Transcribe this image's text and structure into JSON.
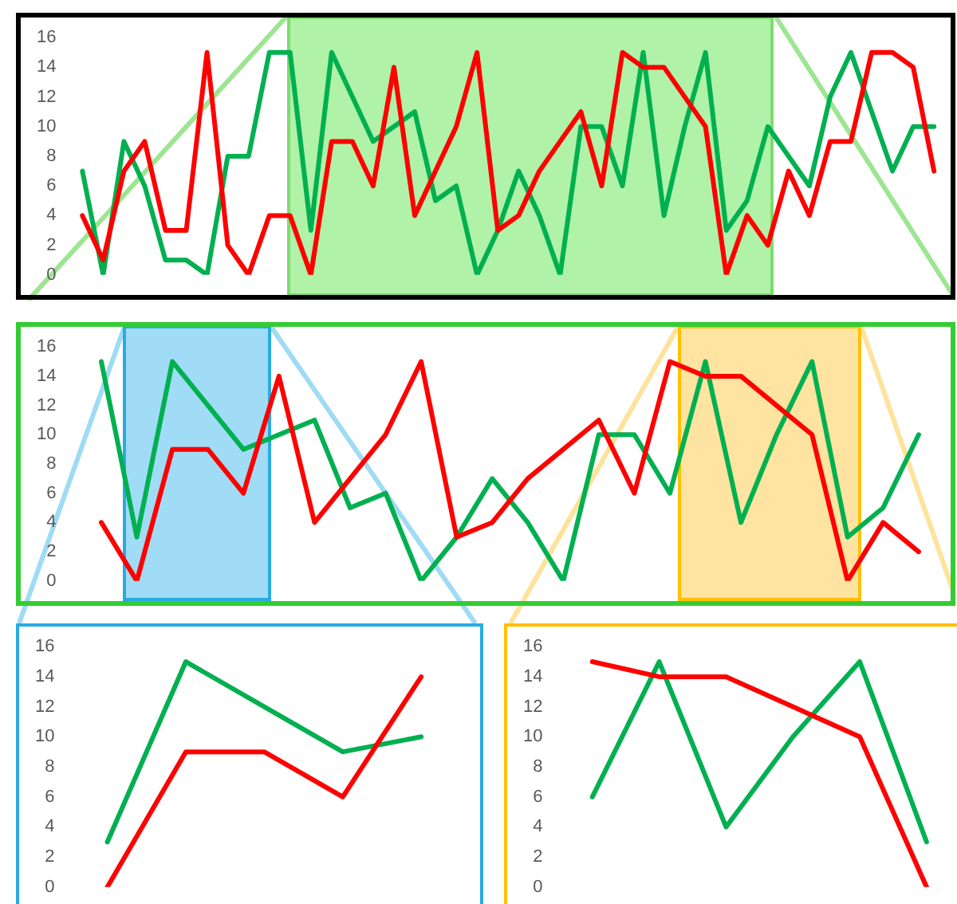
{
  "chart_data": [
    {
      "type": "line",
      "categories": [
        null,
        null,
        null,
        null,
        null,
        null,
        null,
        null,
        null,
        null,
        null,
        null,
        null,
        null,
        null,
        null,
        null,
        null,
        null,
        null,
        null,
        null,
        null,
        null,
        null,
        null,
        null,
        null,
        null,
        null,
        null,
        null,
        null,
        null,
        null,
        null,
        null,
        null,
        null,
        null,
        null,
        null
      ],
      "series": [
        {
          "color": "#ff0000",
          "values": [
            4,
            1,
            7,
            9,
            3,
            3,
            15,
            2,
            0,
            4,
            4,
            0,
            9,
            9,
            6,
            14,
            4,
            7,
            10,
            15,
            3,
            4,
            7,
            9,
            11,
            6,
            15,
            14,
            14,
            12,
            10,
            0,
            4,
            2,
            7,
            4,
            9,
            9,
            15,
            15,
            14,
            7
          ]
        },
        {
          "color": "#00b050",
          "values": [
            7,
            0,
            9,
            6,
            1,
            1,
            0,
            8,
            8,
            15,
            15,
            3,
            15,
            12,
            9,
            10,
            11,
            5,
            6,
            0,
            3,
            7,
            4,
            0,
            10,
            10,
            6,
            15,
            4,
            10,
            15,
            3,
            5,
            10,
            8,
            6,
            12,
            15,
            11,
            7,
            10,
            10
          ]
        }
      ],
      "ylim": [
        0,
        16
      ],
      "yticks": [
        0,
        2,
        4,
        6,
        8,
        10,
        12,
        14,
        16
      ],
      "tick_labels": "y",
      "grid": false,
      "legend": false
    },
    {
      "type": "line",
      "categories": [
        null,
        null,
        null,
        null,
        null,
        null,
        null,
        null,
        null,
        null,
        null,
        null,
        null,
        null,
        null,
        null,
        null,
        null,
        null,
        null,
        null,
        null,
        null,
        null
      ],
      "series": [
        {
          "color": "#ff0000",
          "values": [
            4,
            0,
            9,
            9,
            6,
            14,
            4,
            7,
            10,
            15,
            3,
            4,
            7,
            9,
            11,
            6,
            15,
            14,
            14,
            12,
            10,
            0,
            4,
            2
          ]
        },
        {
          "color": "#00b050",
          "values": [
            15,
            3,
            15,
            12,
            9,
            10,
            11,
            5,
            6,
            0,
            3,
            7,
            4,
            0,
            10,
            10,
            6,
            15,
            4,
            10,
            15,
            3,
            5,
            10
          ]
        }
      ],
      "ylim": [
        0,
        16
      ],
      "yticks": [
        0,
        2,
        4,
        6,
        8,
        10,
        12,
        14,
        16
      ],
      "tick_labels": "y",
      "grid": false,
      "legend": false
    },
    {
      "type": "line",
      "categories": [
        null,
        null,
        null,
        null,
        null
      ],
      "series": [
        {
          "color": "#ff0000",
          "values": [
            0,
            9,
            9,
            6,
            14
          ]
        },
        {
          "color": "#00b050",
          "values": [
            3,
            15,
            12,
            9,
            10
          ]
        }
      ],
      "ylim": [
        0,
        16
      ],
      "yticks": [
        0,
        2,
        4,
        6,
        8,
        10,
        12,
        14,
        16
      ],
      "tick_labels": "y",
      "grid": false,
      "legend": false
    },
    {
      "type": "line",
      "categories": [
        null,
        null,
        null,
        null,
        null,
        null
      ],
      "series": [
        {
          "color": "#ff0000",
          "values": [
            15,
            14,
            14,
            12,
            10,
            0
          ]
        },
        {
          "color": "#00b050",
          "values": [
            6,
            15,
            4,
            10,
            15,
            3
          ]
        }
      ],
      "ylim": [
        0,
        16
      ],
      "yticks": [
        0,
        2,
        4,
        6,
        8,
        10,
        12,
        14,
        16
      ],
      "tick_labels": "y",
      "grid": false,
      "legend": false
    }
  ]
}
